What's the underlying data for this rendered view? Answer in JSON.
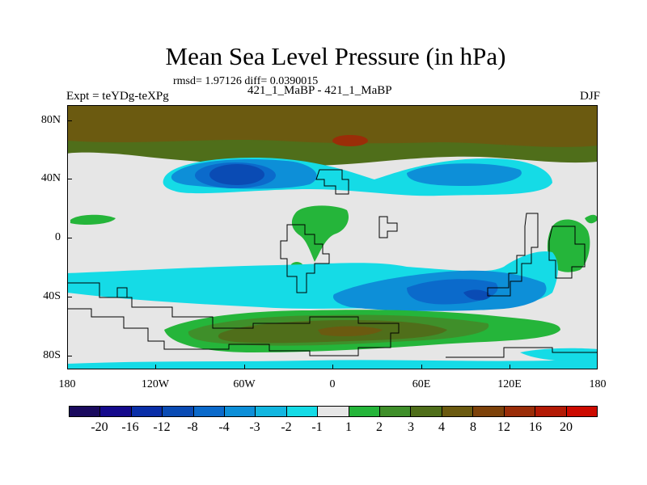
{
  "header": {
    "title": "Mean Sea Level Pressure (in hPa)",
    "rmsd_line": "rmsd= 1.97126 diff= 0.0390015",
    "left_label": "Expt = teYDg-teXPg",
    "center_label": "421_1_MaBP - 421_1_MaBP",
    "right_label": "DJF"
  },
  "axes": {
    "lat_labels": [
      "80N",
      "40N",
      "0",
      "40S",
      "80S"
    ],
    "lon_labels": [
      "180",
      "120W",
      "60W",
      "0",
      "60E",
      "120E",
      "180"
    ]
  },
  "colorbar": {
    "labels": [
      "-20",
      "-16",
      "-12",
      "-8",
      "-4",
      "-3",
      "-2",
      "-1",
      "1",
      "2",
      "3",
      "4",
      "8",
      "12",
      "16",
      "20"
    ],
    "colors": [
      "#1a0a5e",
      "#150a8c",
      "#0a2fa8",
      "#0a4bb4",
      "#0b6acb",
      "#0d8fd8",
      "#12b6e0",
      "#15dbe6",
      "#e6e6e6",
      "#25b53a",
      "#3f8f2a",
      "#4f6e1a",
      "#6b5a10",
      "#7d420a",
      "#9a2d08",
      "#b31a05",
      "#cc0a00"
    ]
  },
  "map": {
    "colors": {
      "neutral": "#e6e6e6",
      "neg1": "#15dbe6",
      "neg2": "#12b6e0",
      "neg3": "#0d8fd8",
      "neg4": "#0b6acb",
      "neg5": "#0a4bb4",
      "pos1": "#25b53a",
      "pos2": "#3f8f2a",
      "pos3": "#4f6e1a",
      "pos4": "#6b5a10",
      "pos5": "#7d420a",
      "pos6": "#9a2d08"
    }
  }
}
